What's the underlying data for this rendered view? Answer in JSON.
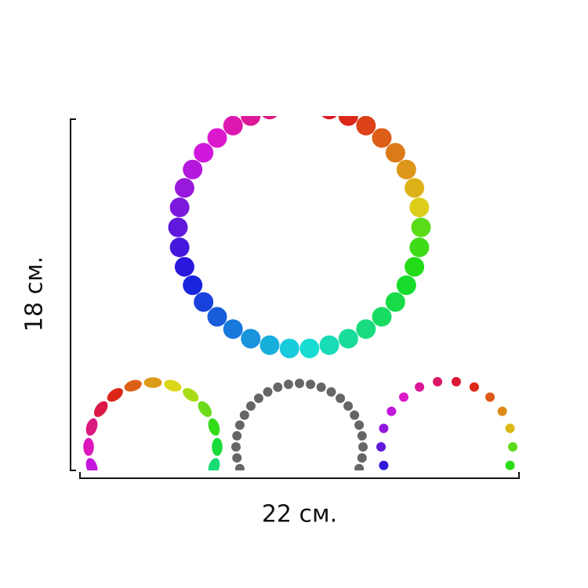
{
  "labels": {
    "height": "18 см.",
    "width": "22 см."
  }
}
